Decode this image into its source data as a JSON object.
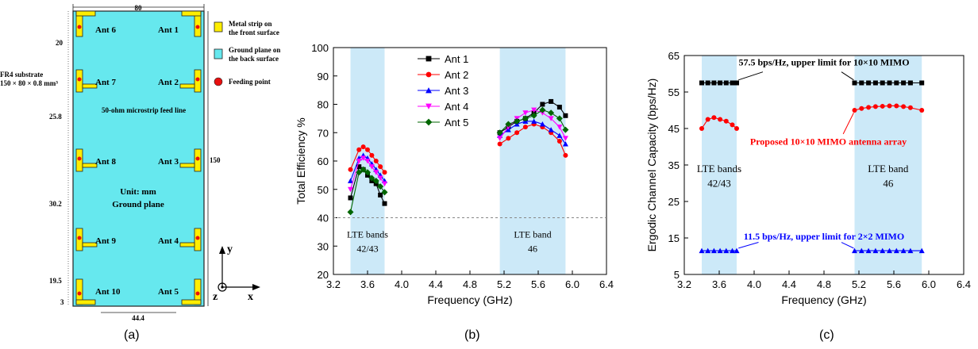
{
  "panel_a": {
    "caption": "(a)",
    "dims": {
      "width": "80",
      "height": "150",
      "top_gap": "20",
      "mid_gap_1": "25.8",
      "mid_gap_2": "30.2",
      "bottom_gap": "19.5",
      "bottom_edge": "3",
      "bottom_span": "44.4"
    },
    "substrate_note_1": "FR4 substrate",
    "substrate_note_2": "150 × 80 × 0.8 mm³",
    "feed_note": "50-ohm microstrip feed line",
    "center_line_1": "Unit: mm",
    "center_line_2": "Ground plane",
    "antennas": [
      "Ant 1",
      "Ant 2",
      "Ant 3",
      "Ant 4",
      "Ant 5",
      "Ant 6",
      "Ant 7",
      "Ant 8",
      "Ant 9",
      "Ant 10"
    ],
    "legend": [
      {
        "line1": "Metal strip on",
        "line2": "the front surface",
        "color": "#ffee00"
      },
      {
        "line1": "Ground plane on",
        "line2": "the back surface",
        "color": "#66e8ee"
      },
      {
        "line1": "Feeding point",
        "line2": "",
        "color": "#e81010"
      }
    ],
    "axes": {
      "y": "y",
      "z": "z",
      "x": "x"
    }
  },
  "chart_data": [
    {
      "type": "line",
      "panel": "b",
      "caption": "(b)",
      "xlabel": "Frequency (GHz)",
      "ylabel": "Total Efficiency %",
      "xlim": [
        3.2,
        6.4
      ],
      "ylim": [
        20,
        100
      ],
      "xticks": [
        "3.2",
        "3.6",
        "4.0",
        "4.4",
        "4.8",
        "5.2",
        "5.6",
        "6.0",
        "6.4"
      ],
      "yticks": [
        "20",
        "30",
        "40",
        "50",
        "60",
        "70",
        "80",
        "90",
        "100"
      ],
      "reference_line": 40,
      "bands": [
        {
          "from": 3.4,
          "to": 3.8,
          "label1": "LTE bands",
          "label2": "42/43"
        },
        {
          "from": 5.15,
          "to": 5.92,
          "label1": "LTE band",
          "label2": "46"
        }
      ],
      "legend_position": "top-center",
      "segments": [
        [
          3.4,
          3.5,
          3.55,
          3.6,
          3.65,
          3.7,
          3.75,
          3.8
        ],
        [
          5.15,
          5.25,
          5.35,
          5.45,
          5.55,
          5.65,
          5.75,
          5.85,
          5.92
        ]
      ],
      "series": [
        {
          "name": "Ant 1",
          "color": "#000000",
          "marker": "square",
          "values": [
            [
              47,
              58,
              57,
              55,
              53,
              52,
              48,
              45
            ],
            [
              70,
              72,
              74,
              75,
              77,
              80,
              81,
              79,
              76
            ]
          ]
        },
        {
          "name": "Ant 2",
          "color": "#ff0000",
          "marker": "circle",
          "values": [
            [
              57,
              64,
              65,
              64,
              62,
              60,
              58,
              56
            ],
            [
              66,
              68,
              70,
              72,
              73,
              72,
              70,
              67,
              62
            ]
          ]
        },
        {
          "name": "Ant 3",
          "color": "#0000ff",
          "marker": "triangle-up",
          "values": [
            [
              53,
              61,
              62,
              61,
              59,
              57,
              55,
              53
            ],
            [
              69,
              71,
              73,
              74,
              74,
              73,
              71,
              69,
              66
            ]
          ]
        },
        {
          "name": "Ant 4",
          "color": "#ff00ff",
          "marker": "triangle-down",
          "values": [
            [
              50,
              60,
              61,
              60,
              58,
              56,
              54,
              52
            ],
            [
              68,
              72,
              75,
              77,
              78,
              77,
              75,
              72,
              68
            ]
          ]
        },
        {
          "name": "Ant 5",
          "color": "#006600",
          "marker": "diamond",
          "values": [
            [
              42,
              56,
              57,
              56,
              54,
              53,
              51,
              49
            ],
            [
              70,
              73,
              74,
              75,
              76,
              78,
              77,
              75,
              71
            ]
          ]
        }
      ]
    },
    {
      "type": "line",
      "panel": "c",
      "caption": "(c)",
      "xlabel": "Frequency (GHz)",
      "ylabel": "Ergodic Channel Capacity (bps/Hz)",
      "xlim": [
        3.2,
        6.4
      ],
      "ylim": [
        5,
        65
      ],
      "xticks": [
        "3.2",
        "3.6",
        "4.0",
        "4.4",
        "4.8",
        "5.2",
        "5.6",
        "6.0",
        "6.4"
      ],
      "yticks": [
        "5",
        "15",
        "25",
        "35",
        "45",
        "55",
        "65"
      ],
      "bands": [
        {
          "from": 3.4,
          "to": 3.8,
          "label1": "LTE bands",
          "label2": "42/43"
        },
        {
          "from": 5.15,
          "to": 5.92,
          "label1": "LTE band",
          "label2": "46"
        }
      ],
      "segments": [
        [
          3.4,
          3.47,
          3.54,
          3.61,
          3.68,
          3.75,
          3.8
        ],
        [
          5.15,
          5.23,
          5.31,
          5.39,
          5.47,
          5.55,
          5.63,
          5.71,
          5.79,
          5.92
        ]
      ],
      "series": [
        {
          "name": "10×10 upper limit",
          "color": "#000000",
          "marker": "square",
          "values": [
            [
              57.5,
              57.5,
              57.5,
              57.5,
              57.5,
              57.5,
              57.5
            ],
            [
              57.5,
              57.5,
              57.5,
              57.5,
              57.5,
              57.5,
              57.5,
              57.5,
              57.5,
              57.5
            ]
          ]
        },
        {
          "name": "Proposed array",
          "color": "#ff0000",
          "marker": "circle",
          "values": [
            [
              45,
              47.5,
              48,
              47.5,
              47,
              46,
              45
            ],
            [
              50,
              50.5,
              50.8,
              51,
              51.1,
              51.2,
              51.2,
              51,
              50.7,
              50
            ]
          ]
        },
        {
          "name": "2×2 upper limit",
          "color": "#0000ff",
          "marker": "triangle-up",
          "values": [
            [
              11.5,
              11.5,
              11.5,
              11.5,
              11.5,
              11.5,
              11.5
            ],
            [
              11.5,
              11.5,
              11.5,
              11.5,
              11.5,
              11.5,
              11.5,
              11.5,
              11.5,
              11.5
            ]
          ]
        }
      ],
      "annotations": [
        {
          "text": "57.5 bps/Hz, upper limit for 10×10 MIMO",
          "color": "#000000"
        },
        {
          "text": "Proposed 10×10 MIMO antenna array",
          "color": "#ff0000"
        },
        {
          "text": "11.5 bps/Hz, upper limit for 2×2 MIMO",
          "color": "#0000ff"
        }
      ]
    }
  ]
}
